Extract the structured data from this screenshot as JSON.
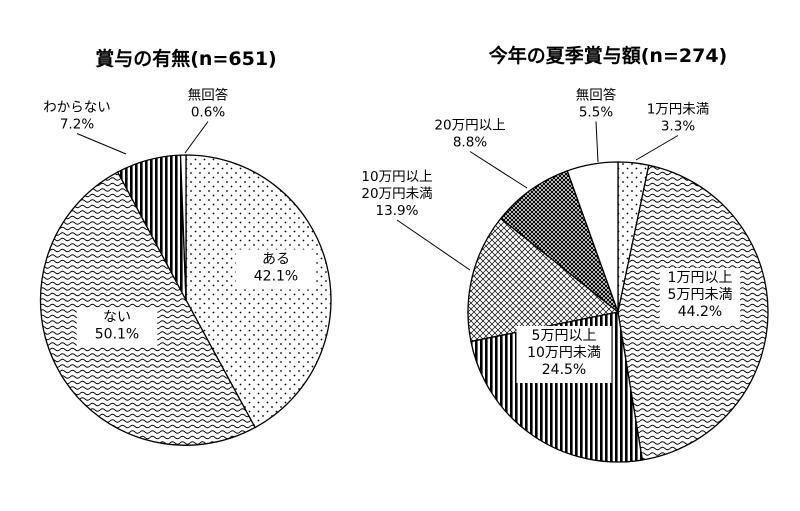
{
  "chart_data": [
    {
      "type": "pie",
      "title": "賞与の有無(n=651)",
      "slices": [
        {
          "label": "ある",
          "value": 42.1,
          "value_text": "42.1%",
          "pattern": "dots"
        },
        {
          "label": "ない",
          "value": 50.1,
          "value_text": "50.1%",
          "pattern": "waves"
        },
        {
          "label": "わからない",
          "value": 7.2,
          "value_text": "7.2%",
          "pattern": "vertical-stripes"
        },
        {
          "label": "無回答",
          "value": 0.6,
          "value_text": "0.6%",
          "pattern": "white"
        }
      ]
    },
    {
      "type": "pie",
      "title": "今年の夏季賞与額(n=274)",
      "slices": [
        {
          "label": "1万円未満",
          "value": 3.3,
          "value_text": "3.3%",
          "pattern": "dots"
        },
        {
          "label": "1万円以上\n5万円未満",
          "value": 44.2,
          "value_text": "44.2%",
          "pattern": "waves"
        },
        {
          "label": "5万円以上\n10万円未満",
          "value": 24.5,
          "value_text": "24.5%",
          "pattern": "vertical-stripes"
        },
        {
          "label": "10万円以上\n20万円未満",
          "value": 13.9,
          "value_text": "13.9%",
          "pattern": "light-crosshatch"
        },
        {
          "label": "20万円以上",
          "value": 8.8,
          "value_text": "8.8%",
          "pattern": "dark-crosshatch"
        },
        {
          "label": "無回答",
          "value": 5.5,
          "value_text": "5.5%",
          "pattern": "white"
        }
      ]
    }
  ]
}
